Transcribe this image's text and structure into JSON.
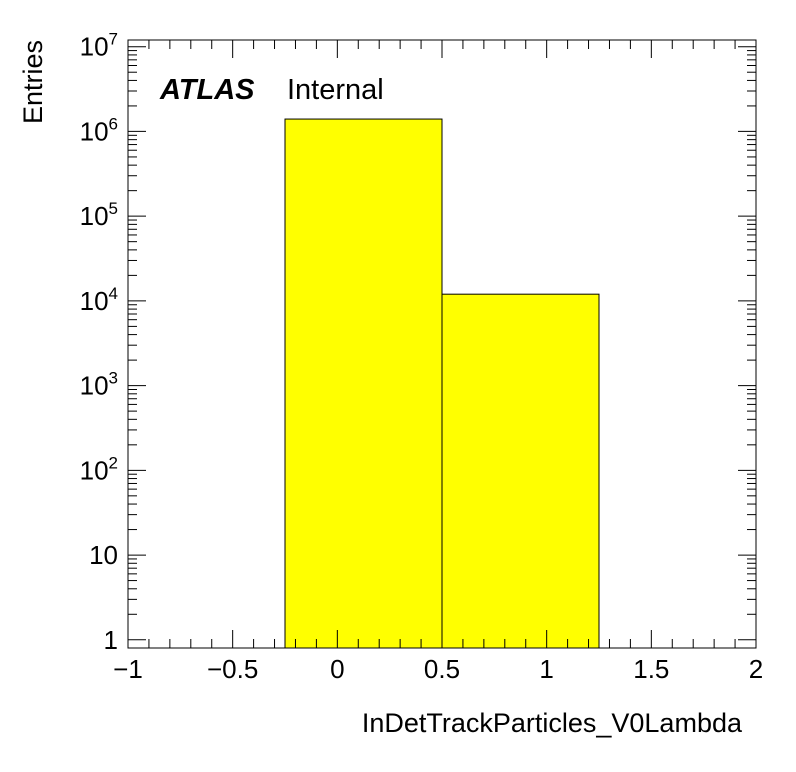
{
  "chart_data": {
    "type": "bar",
    "experiment_label": "ATLAS",
    "status_label": "Internal",
    "xlabel": "InDetTrackParticles_V0Lambda",
    "ylabel": "Entries",
    "xlim": [
      -1,
      2
    ],
    "ylim": [
      0.8,
      12000000
    ],
    "yscale": "log",
    "bins": [
      {
        "low": -0.25,
        "high": 0.5,
        "value": 1400000
      },
      {
        "low": 0.5,
        "high": 1.25,
        "value": 12000
      }
    ],
    "x_ticks": [
      {
        "value": -1,
        "label": "−1"
      },
      {
        "value": -0.5,
        "label": "−0.5"
      },
      {
        "value": 0,
        "label": "0"
      },
      {
        "value": 0.5,
        "label": "0.5"
      },
      {
        "value": 1,
        "label": "1"
      },
      {
        "value": 1.5,
        "label": "1.5"
      },
      {
        "value": 2,
        "label": "2"
      }
    ],
    "y_ticks": [
      {
        "value": 1,
        "base": "1",
        "exp": ""
      },
      {
        "value": 10,
        "base": "10",
        "exp": ""
      },
      {
        "value": 100,
        "base": "10",
        "exp": "2"
      },
      {
        "value": 1000,
        "base": "10",
        "exp": "3"
      },
      {
        "value": 10000,
        "base": "10",
        "exp": "4"
      },
      {
        "value": 100000,
        "base": "10",
        "exp": "5"
      },
      {
        "value": 1000000,
        "base": "10",
        "exp": "6"
      },
      {
        "value": 10000000,
        "base": "10",
        "exp": "7"
      }
    ],
    "fill_color": "#ffff00",
    "edge_color": "#000000",
    "grid": false,
    "legend": "none"
  }
}
